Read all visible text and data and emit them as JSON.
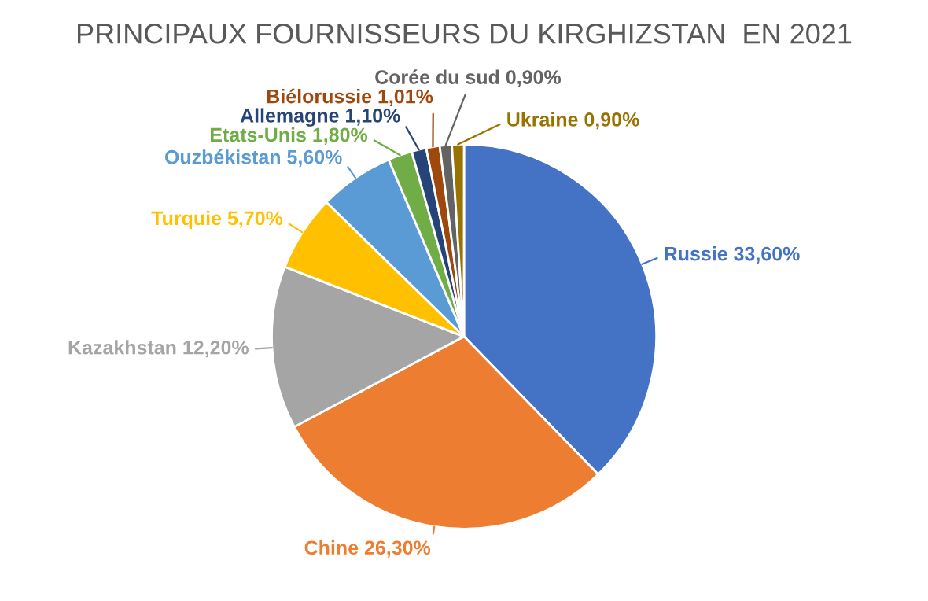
{
  "chart_data": {
    "type": "pie",
    "title": "PRINCIPAUX FOURNISSEURS DU KIRGHIZSTAN  EN 2021",
    "categories": [
      "Russie",
      "Chine",
      "Kazakhstan",
      "Turquie",
      "Ouzbékistan",
      "Etats-Unis",
      "Allemagne",
      "Biélorussie",
      "Corée du sud",
      "Ukraine"
    ],
    "values": [
      33.6,
      26.3,
      12.2,
      5.7,
      5.6,
      1.8,
      1.1,
      1.01,
      0.9,
      0.9
    ],
    "value_labels": [
      "33,60%",
      "26,30%",
      "12,20%",
      "5,70%",
      "5,60%",
      "1,80%",
      "1,10%",
      "1,01%",
      "0,90%",
      "0,90%"
    ],
    "colors": [
      "#4472c4",
      "#ed7d31",
      "#a5a5a5",
      "#ffc000",
      "#5b9bd5",
      "#70ad47",
      "#264478",
      "#9e480e",
      "#636363",
      "#997300"
    ],
    "legend": false
  }
}
